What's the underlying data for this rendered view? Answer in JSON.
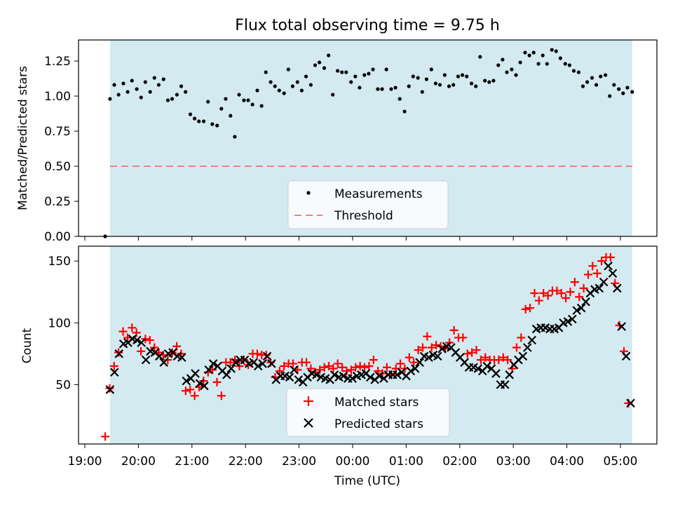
{
  "title": "Flux total observing time = 9.75 h",
  "colors": {
    "shade": "#d4eaf1",
    "points": "#000000",
    "threshold": "#f08080",
    "matched": "#ff0000",
    "predicted": "#000000"
  },
  "x_ticks": [
    "19:00",
    "20:00",
    "21:00",
    "22:00",
    "23:00",
    "00:00",
    "01:00",
    "02:00",
    "03:00",
    "04:00",
    "05:00"
  ],
  "chart_data": [
    {
      "type": "scatter",
      "name": "ratio",
      "ylabel": "Matched/Predicted stars",
      "ylim": [
        0,
        1.4
      ],
      "y_ticks": [
        "0.00",
        "0.25",
        "0.50",
        "0.75",
        "1.00",
        "1.25"
      ],
      "x_unit": "hours since 19:00 UTC",
      "shade_range": [
        0.47,
        10.22
      ],
      "threshold": 0.5,
      "legend": [
        "Measurements",
        "Threshold"
      ],
      "x": [
        0.38,
        0.47,
        0.55,
        0.63,
        0.72,
        0.8,
        0.88,
        0.97,
        1.05,
        1.13,
        1.22,
        1.3,
        1.38,
        1.47,
        1.55,
        1.63,
        1.72,
        1.8,
        1.88,
        1.97,
        2.05,
        2.13,
        2.22,
        2.3,
        2.38,
        2.47,
        2.55,
        2.63,
        2.72,
        2.8,
        2.88,
        2.97,
        3.05,
        3.13,
        3.22,
        3.3,
        3.38,
        3.47,
        3.55,
        3.63,
        3.72,
        3.8,
        3.88,
        3.97,
        4.05,
        4.13,
        4.22,
        4.3,
        4.38,
        4.47,
        4.55,
        4.63,
        4.72,
        4.8,
        4.88,
        4.97,
        5.05,
        5.13,
        5.22,
        5.3,
        5.38,
        5.47,
        5.55,
        5.63,
        5.72,
        5.8,
        5.88,
        5.97,
        6.05,
        6.13,
        6.22,
        6.3,
        6.38,
        6.47,
        6.55,
        6.63,
        6.72,
        6.8,
        6.88,
        6.97,
        7.05,
        7.13,
        7.22,
        7.3,
        7.38,
        7.47,
        7.55,
        7.63,
        7.72,
        7.8,
        7.88,
        7.97,
        8.05,
        8.13,
        8.22,
        8.3,
        8.38,
        8.47,
        8.55,
        8.63,
        8.72,
        8.8,
        8.88,
        8.97,
        9.05,
        9.13,
        9.22,
        9.3,
        9.38,
        9.47,
        9.55,
        9.63,
        9.72,
        9.8,
        9.88,
        9.97,
        10.05,
        10.13,
        10.22
      ],
      "y": [
        0.0,
        0.98,
        1.08,
        1.01,
        1.09,
        1.03,
        1.11,
        1.05,
        0.99,
        1.1,
        1.03,
        1.13,
        1.08,
        1.12,
        0.97,
        0.98,
        1.01,
        1.07,
        1.03,
        0.87,
        0.84,
        0.82,
        0.82,
        0.96,
        0.8,
        0.79,
        0.91,
        0.98,
        0.86,
        0.71,
        1.01,
        0.97,
        0.97,
        0.94,
        1.04,
        0.93,
        1.17,
        1.1,
        1.07,
        1.04,
        1.02,
        1.19,
        1.07,
        1.1,
        1.04,
        1.14,
        1.08,
        1.22,
        1.24,
        1.2,
        1.29,
        1.01,
        1.18,
        1.17,
        1.17,
        1.1,
        1.14,
        1.06,
        1.15,
        1.16,
        1.19,
        1.05,
        1.05,
        1.19,
        1.05,
        1.06,
        0.98,
        0.89,
        1.07,
        1.14,
        1.13,
        1.03,
        1.12,
        1.19,
        1.09,
        1.08,
        1.15,
        1.07,
        1.08,
        1.14,
        1.15,
        1.14,
        1.09,
        1.07,
        1.28,
        1.11,
        1.1,
        1.11,
        1.22,
        1.26,
        1.17,
        1.19,
        1.15,
        1.24,
        1.31,
        1.29,
        1.31,
        1.23,
        1.29,
        1.23,
        1.33,
        1.32,
        1.27,
        1.23,
        1.22,
        1.18,
        1.17,
        1.07,
        1.1,
        1.13,
        1.08,
        1.14,
        1.15,
        1.0,
        1.08,
        1.05,
        1.02,
        1.06,
        1.03
      ]
    },
    {
      "type": "scatter",
      "name": "counts",
      "ylabel": "Count",
      "xlabel": "Time (UTC)",
      "ylim": [
        2,
        162
      ],
      "y_ticks": [
        "50",
        "100",
        "150"
      ],
      "shade_range": [
        0.47,
        10.22
      ],
      "legend": [
        "Matched stars",
        "Predicted stars"
      ],
      "series": [
        {
          "name": "Matched stars",
          "marker": "+",
          "values": [
            8,
            47,
            65,
            76,
            93,
            88,
            96,
            92,
            77,
            87,
            86,
            80,
            76,
            74,
            70,
            76,
            81,
            75,
            45,
            46,
            41,
            48,
            53,
            60,
            62,
            52,
            41,
            68,
            68,
            70,
            65,
            70,
            66,
            75,
            75,
            74,
            74,
            68,
            56,
            61,
            65,
            67,
            67,
            62,
            68,
            68,
            63,
            60,
            62,
            64,
            65,
            63,
            67,
            64,
            61,
            62,
            64,
            65,
            64,
            65,
            70,
            61,
            59,
            64,
            58,
            63,
            67,
            63,
            72,
            68,
            78,
            80,
            89,
            80,
            82,
            81,
            79,
            84,
            94,
            88,
            88,
            75,
            76,
            78,
            70,
            72,
            70,
            70,
            70,
            72,
            70,
            63,
            80,
            88,
            111,
            112,
            124,
            118,
            124,
            122,
            126,
            126,
            124,
            120,
            125,
            133,
            121,
            128,
            139,
            146,
            140,
            150,
            153,
            153,
            132,
            98,
            77,
            35
          ],
          "x_first": 0.38,
          "x_step": 0.0835
        },
        {
          "name": "Predicted stars",
          "marker": "x",
          "values": [
            46,
            60,
            75,
            83,
            84,
            87,
            86,
            84,
            70,
            77,
            76,
            73,
            68,
            75,
            76,
            73,
            72,
            53,
            55,
            59,
            51,
            49,
            62,
            67,
            65,
            61,
            58,
            63,
            68,
            70,
            70,
            67,
            68,
            65,
            67,
            73,
            67,
            54,
            57,
            57,
            56,
            62,
            54,
            52,
            56,
            59,
            58,
            56,
            55,
            54,
            58,
            56,
            57,
            55,
            55,
            57,
            58,
            59,
            56,
            54,
            57,
            55,
            58,
            58,
            58,
            60,
            57,
            61,
            63,
            68,
            73,
            72,
            74,
            73,
            79,
            81,
            80,
            76,
            72,
            68,
            64,
            64,
            63,
            61,
            65,
            63,
            59,
            50,
            50,
            58,
            66,
            70,
            73,
            80,
            86,
            95,
            96,
            96,
            95,
            95,
            96,
            100,
            101,
            103,
            110,
            112,
            117,
            124,
            127,
            128,
            133,
            146,
            140,
            128,
            97,
            73,
            35
          ],
          "x_first": 0.47,
          "x_step": 0.0838
        }
      ]
    }
  ]
}
